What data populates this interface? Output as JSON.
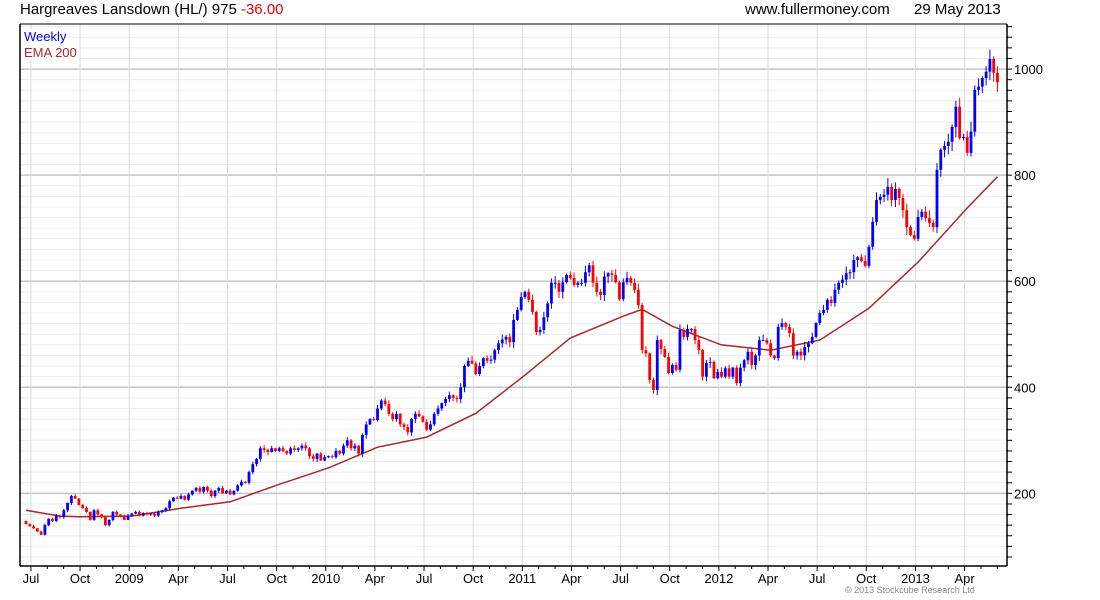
{
  "header": {
    "title": "Hargreaves Lansdown (HL/) 975",
    "change": "-36.00",
    "site": "www.fullermoney.com",
    "date": "29 May 2013"
  },
  "footer": {
    "copyright": "© 2013 Stockcube Research Ltd"
  },
  "colors": {
    "up": "#0000ff",
    "down": "#ff0000",
    "ema": "#a52a2a",
    "change": "#e00000"
  },
  "chart_data": {
    "type": "candlestick",
    "title": "Hargreaves Lansdown (HL/) 975 -36.00",
    "legend": [
      {
        "label": "Weekly",
        "color": "#0000ff"
      },
      {
        "label": "EMA 200",
        "color": "#a52a2a"
      }
    ],
    "legend_placement": "top-left",
    "grid": true,
    "ylim": [
      63,
      1085
    ],
    "y_ticks": [
      200,
      400,
      600,
      800,
      1000
    ],
    "y_minor_step": 20,
    "y_axis_side": "right",
    "x_unit": "week index",
    "x_ticks": [
      {
        "label": "Jul",
        "week": 1.3
      },
      {
        "label": "Oct",
        "week": 14.3
      },
      {
        "label": "2009",
        "week": 27.3
      },
      {
        "label": "Apr",
        "week": 40.3
      },
      {
        "label": "Jul",
        "week": 53.3
      },
      {
        "label": "Oct",
        "week": 66.3
      },
      {
        "label": "2010",
        "week": 79.3
      },
      {
        "label": "Apr",
        "week": 92.3
      },
      {
        "label": "Jul",
        "week": 105.3
      },
      {
        "label": "Oct",
        "week": 118.3
      },
      {
        "label": "2011",
        "week": 131.3
      },
      {
        "label": "Apr",
        "week": 144.3
      },
      {
        "label": "Jul",
        "week": 157.3
      },
      {
        "label": "Oct",
        "week": 170.3
      },
      {
        "label": "2012",
        "week": 183.3
      },
      {
        "label": "Apr",
        "week": 196.3
      },
      {
        "label": "Jul",
        "week": 209.3
      },
      {
        "label": "Oct",
        "week": 222.3
      },
      {
        "label": "2013",
        "week": 235.3
      },
      {
        "label": "Apr",
        "week": 248.3
      }
    ],
    "first_open": 148,
    "weekly_close": [
      142,
      138,
      134,
      128,
      122,
      140,
      152,
      148,
      158,
      155,
      168,
      182,
      195,
      190,
      178,
      172,
      165,
      150,
      168,
      160,
      155,
      140,
      150,
      165,
      160,
      158,
      150,
      158,
      162,
      165,
      158,
      163,
      160,
      162,
      158,
      165,
      168,
      172,
      185,
      192,
      190,
      195,
      188,
      198,
      205,
      210,
      203,
      212,
      205,
      195,
      205,
      210,
      200,
      205,
      198,
      205,
      215,
      222,
      220,
      240,
      255,
      265,
      285,
      282,
      278,
      285,
      280,
      285,
      280,
      275,
      285,
      282,
      285,
      290,
      285,
      270,
      265,
      275,
      262,
      268,
      270,
      268,
      280,
      275,
      290,
      300,
      285,
      290,
      275,
      310,
      330,
      340,
      338,
      360,
      375,
      368,
      350,
      340,
      350,
      330,
      325,
      315,
      340,
      350,
      345,
      335,
      320,
      330,
      350,
      360,
      370,
      378,
      385,
      380,
      378,
      400,
      440,
      450,
      445,
      425,
      440,
      455,
      450,
      452,
      470,
      483,
      490,
      495,
      485,
      527,
      546,
      570,
      580,
      565,
      542,
      504,
      508,
      532,
      558,
      597,
      597,
      580,
      598,
      612,
      606,
      593,
      597,
      597,
      617,
      630,
      597,
      580,
      574,
      609,
      615,
      612,
      598,
      566,
      598,
      606,
      597,
      584,
      555,
      470,
      464,
      414,
      395,
      489,
      472,
      457,
      427,
      442,
      433,
      508,
      495,
      510,
      510,
      489,
      470,
      420,
      446,
      448,
      417,
      429,
      420,
      436,
      420,
      437,
      408,
      437,
      451,
      467,
      442,
      460,
      489,
      489,
      483,
      460,
      455,
      514,
      521,
      514,
      502,
      460,
      467,
      460,
      476,
      483,
      495,
      521,
      540,
      546,
      565,
      559,
      584,
      597,
      603,
      615,
      617,
      640,
      645,
      638,
      629,
      665,
      712,
      753,
      759,
      763,
      778,
      753,
      774,
      757,
      734,
      702,
      687,
      680,
      721,
      731,
      719,
      710,
      702,
      810,
      848,
      855,
      863,
      891,
      929,
      870,
      872,
      842,
      882,
      961,
      967,
      983,
      995,
      1019,
      993,
      975
    ],
    "ema_200": [
      [
        0,
        168
      ],
      [
        9,
        157
      ],
      [
        14,
        156
      ],
      [
        28,
        157
      ],
      [
        41,
        172
      ],
      [
        54,
        184
      ],
      [
        67,
        217
      ],
      [
        80,
        248
      ],
      [
        93,
        287
      ],
      [
        106,
        306
      ],
      [
        119,
        351
      ],
      [
        132,
        423
      ],
      [
        144,
        493
      ],
      [
        158,
        534
      ],
      [
        163,
        547
      ],
      [
        171,
        515
      ],
      [
        184,
        480
      ],
      [
        197,
        470
      ],
      [
        210,
        489
      ],
      [
        223,
        549
      ],
      [
        236,
        636
      ],
      [
        249,
        738
      ],
      [
        257,
        797
      ]
    ]
  }
}
